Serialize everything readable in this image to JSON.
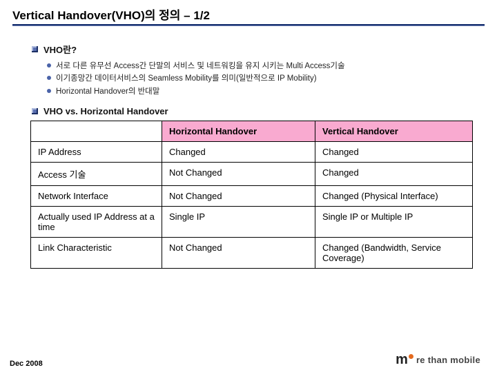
{
  "title": "Vertical Handover(VHO)의 정의 – 1/2",
  "section1": {
    "heading": "VHO란?",
    "bullets": [
      "서로 다른 유무선 Access간 단말의 서비스 및 네트워킹을 유지 시키는 Multi Access기술",
      "이기종망간 데이터서비스의 Seamless Mobility를 의미(일반적으로 IP Mobility)",
      "Horizontal Handover의 반대말"
    ]
  },
  "section2": {
    "heading": "VHO vs. Horizontal Handover"
  },
  "table": {
    "header_bg": "#f9aad0",
    "border_color": "#000000",
    "columns": [
      "",
      "Horizontal Handover",
      "Vertical Handover"
    ],
    "rows": [
      [
        "IP Address",
        "Changed",
        "Changed"
      ],
      [
        "Access 기술",
        "Not Changed",
        "Changed"
      ],
      [
        "Network Interface",
        "Not Changed",
        "Changed (Physical Interface)"
      ],
      [
        "Actually used IP Address at a time",
        "Single IP",
        "Single IP or Multiple IP"
      ],
      [
        "Link Characteristic",
        "Not Changed",
        "Changed (Bandwidth, Service Coverage)"
      ]
    ]
  },
  "footer": {
    "date": "Dec 2008",
    "logo_m": "m",
    "logo_text": "re than mobile"
  },
  "colors": {
    "title_underline": "#102a6b",
    "bullet_square": "#5a6fb0",
    "bullet_dot": "#4a63a8",
    "logo_orange": "#e46a1f"
  }
}
